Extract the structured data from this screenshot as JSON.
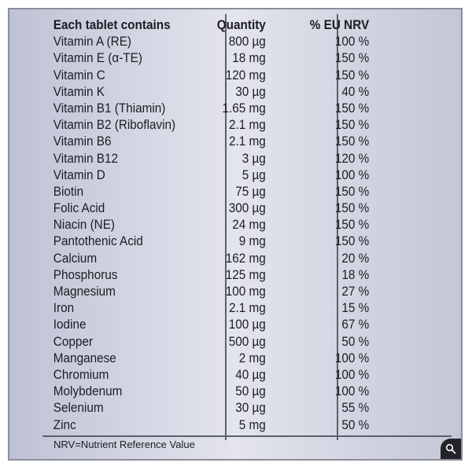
{
  "table": {
    "headers": {
      "name": "Each tablet contains",
      "quantity": "Quantity",
      "nrv": "% EU NRV"
    },
    "rows": [
      {
        "name": "Vitamin A (RE)",
        "quantity": "800 µg",
        "nrv": "100 %"
      },
      {
        "name": "Vitamin E (α-TE)",
        "quantity": "18 mg",
        "nrv": "150 %"
      },
      {
        "name": "Vitamin C",
        "quantity": "120 mg",
        "nrv": "150 %"
      },
      {
        "name": "Vitamin K",
        "quantity": "30 µg",
        "nrv": "40 %"
      },
      {
        "name": "Vitamin B1 (Thiamin)",
        "quantity": "1.65 mg",
        "nrv": "150 %"
      },
      {
        "name": "Vitamin B2 (Riboflavin)",
        "quantity": "2.1 mg",
        "nrv": "150 %"
      },
      {
        "name": "Vitamin B6",
        "quantity": "2.1 mg",
        "nrv": "150 %"
      },
      {
        "name": "Vitamin B12",
        "quantity": "3 µg",
        "nrv": "120 %"
      },
      {
        "name": "Vitamin D",
        "quantity": "5 µg",
        "nrv": "100 %"
      },
      {
        "name": "Biotin",
        "quantity": "75 µg",
        "nrv": "150 %"
      },
      {
        "name": "Folic Acid",
        "quantity": "300 µg",
        "nrv": "150 %"
      },
      {
        "name": "Niacin (NE)",
        "quantity": "24 mg",
        "nrv": "150 %"
      },
      {
        "name": "Pantothenic Acid",
        "quantity": "9 mg",
        "nrv": "150 %"
      },
      {
        "name": "Calcium",
        "quantity": "162 mg",
        "nrv": "20 %"
      },
      {
        "name": "Phosphorus",
        "quantity": "125 mg",
        "nrv": "18 %"
      },
      {
        "name": "Magnesium",
        "quantity": "100 mg",
        "nrv": "27 %"
      },
      {
        "name": "Iron",
        "quantity": "2.1 mg",
        "nrv": "15 %"
      },
      {
        "name": "Iodine",
        "quantity": "100 µg",
        "nrv": "67 %"
      },
      {
        "name": "Copper",
        "quantity": "500 µg",
        "nrv": "50 %"
      },
      {
        "name": "Manganese",
        "quantity": "2 mg",
        "nrv": "100 %"
      },
      {
        "name": "Chromium",
        "quantity": "40 µg",
        "nrv": "100 %"
      },
      {
        "name": "Molybdenum",
        "quantity": "50 µg",
        "nrv": "100 %"
      },
      {
        "name": "Selenium",
        "quantity": "30 µg",
        "nrv": "55 %"
      },
      {
        "name": "Zinc",
        "quantity": "5 mg",
        "nrv": "50 %"
      }
    ],
    "footnote": "NRV=Nutrient Reference Value"
  },
  "icons": {
    "zoom": "zoom-magnifier-icon"
  },
  "colors": {
    "panel_light": "#e3e4ee",
    "panel_dark": "#bfc2d4",
    "rule": "#5c5f6a",
    "zoom_bg": "#23242a"
  }
}
